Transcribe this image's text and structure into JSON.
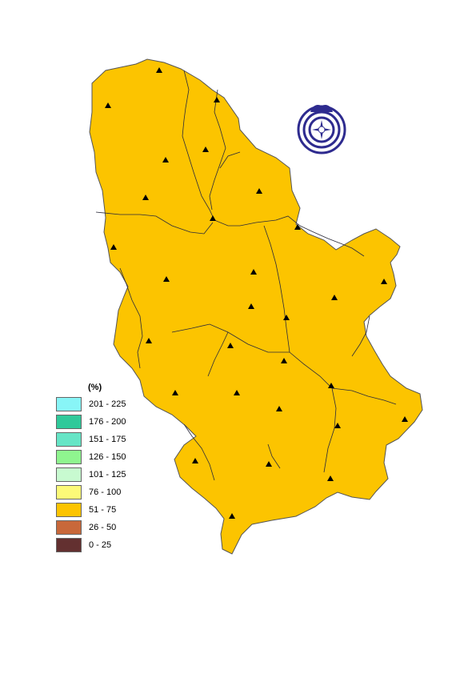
{
  "legend": {
    "title": "(%)",
    "classes": [
      {
        "label": "201 - 225",
        "color": "#88f5f7"
      },
      {
        "label": "176 - 200",
        "color": "#2fc99a"
      },
      {
        "label": "151 - 175",
        "color": "#66e5c6"
      },
      {
        "label": "126 - 150",
        "color": "#8ff58f"
      },
      {
        "label": "101 - 125",
        "color": "#c8fad0"
      },
      {
        "label": "76 - 100",
        "color": "#fcfa78"
      },
      {
        "label": "51 - 75",
        "color": "#fcc400"
      },
      {
        "label": "26 - 50",
        "color": "#c8683a"
      },
      {
        "label": "0 - 25",
        "color": "#633030"
      }
    ]
  },
  "logo": {
    "name": "institute-logo",
    "color": "#2e2b8f"
  },
  "colors": {
    "border": "#555555",
    "river": "#2a2a3a",
    "station": "#000000"
  }
}
